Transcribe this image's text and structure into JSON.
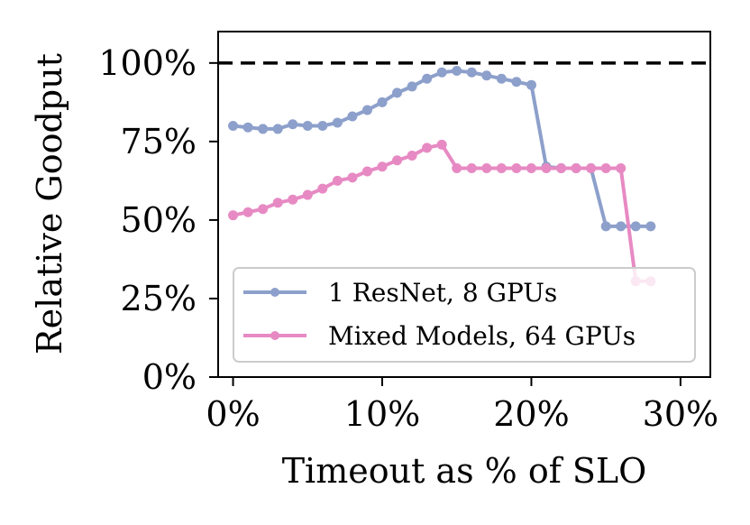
{
  "chart_data": {
    "type": "line",
    "title": "",
    "xlabel": "Timeout as % of SLO",
    "ylabel": "Relative Goodput",
    "xlim": [
      -1,
      32
    ],
    "ylim": [
      0,
      110
    ],
    "xticks": [
      0,
      10,
      20,
      30
    ],
    "xtick_labels": [
      "0%",
      "10%",
      "20%",
      "30%"
    ],
    "yticks": [
      0,
      25,
      50,
      75,
      100
    ],
    "ytick_labels": [
      "0%",
      "25%",
      "50%",
      "75%",
      "100%"
    ],
    "reference_line": {
      "y": 100,
      "style": "dashed",
      "color": "#000000"
    },
    "legend_position": "lower-right",
    "series": [
      {
        "name": "1 ResNet, 8 GPUs",
        "color": "#8da0cb",
        "x": [
          0,
          1,
          2,
          3,
          4,
          5,
          6,
          7,
          8,
          9,
          10,
          11,
          12,
          13,
          14,
          15,
          16,
          17,
          18,
          19,
          20,
          21,
          22,
          23,
          24,
          25,
          26,
          27,
          28
        ],
        "values": [
          80,
          79.5,
          79,
          79,
          80.5,
          80,
          80,
          81,
          83,
          85,
          87.5,
          90.5,
          92.5,
          95,
          97,
          97.5,
          97,
          96,
          95,
          94,
          93,
          67,
          66.5,
          66.5,
          66.5,
          48,
          48,
          48,
          48
        ]
      },
      {
        "name": "Mixed Models, 64 GPUs",
        "color": "#e78ac3",
        "x": [
          0,
          1,
          2,
          3,
          4,
          5,
          6,
          7,
          8,
          9,
          10,
          11,
          12,
          13,
          14,
          15,
          16,
          17,
          18,
          19,
          20,
          21,
          22,
          23,
          24,
          25,
          26,
          27,
          28
        ],
        "values": [
          51.5,
          52.5,
          53.5,
          55.5,
          56.5,
          58,
          60,
          62.5,
          63.5,
          65.5,
          67,
          69,
          70.5,
          73,
          74,
          66.5,
          66.5,
          66.5,
          66.5,
          66.5,
          66.5,
          66.5,
          66.5,
          66.5,
          66.5,
          66.5,
          66.5,
          30.5,
          30.5
        ]
      }
    ]
  }
}
